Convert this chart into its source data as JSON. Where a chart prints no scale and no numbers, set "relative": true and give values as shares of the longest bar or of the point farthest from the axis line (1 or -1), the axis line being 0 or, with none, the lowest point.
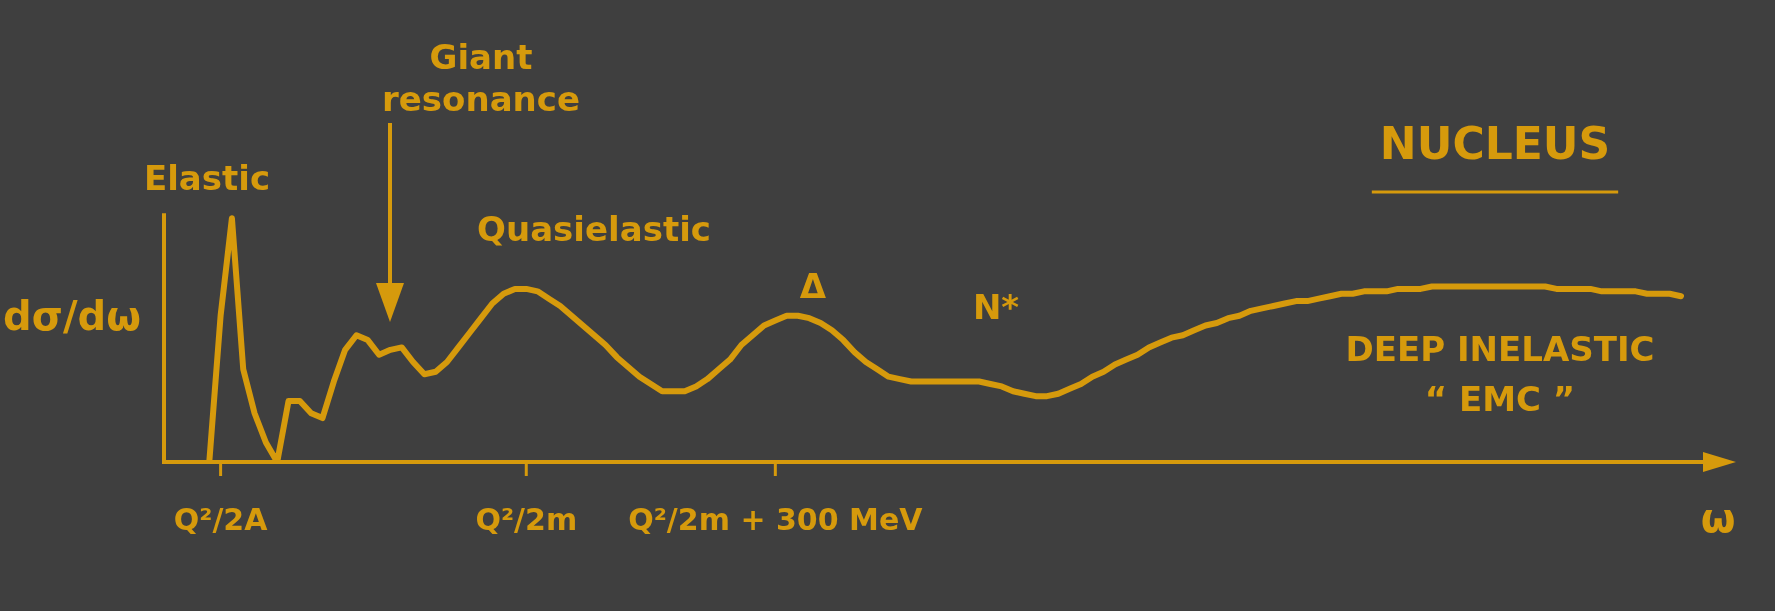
{
  "chart_data": {
    "type": "line",
    "title": "NUCLEUS",
    "xlabel": "ω",
    "ylabel": "dσ/dω",
    "relative": true,
    "grid": false,
    "legend": false,
    "marker": "none",
    "line_style": "solid",
    "annotations": [
      "Elastic",
      "Giant resonance",
      "Quasielastic",
      "Δ",
      "N*",
      "DEEP INELASTIC",
      "“ EMC ”"
    ],
    "categories": [
      null,
      null,
      null,
      null,
      null,
      "Q²/2A",
      null,
      null,
      null,
      null,
      null,
      null,
      null,
      null,
      null,
      null,
      null,
      null,
      null,
      null,
      null,
      null,
      null,
      null,
      null,
      null,
      null,
      null,
      null,
      null,
      null,
      null,
      "Q²/2m",
      null,
      null,
      null,
      null,
      null,
      null,
      null,
      null,
      null,
      null,
      null,
      null,
      null,
      null,
      null,
      null,
      null,
      null,
      null,
      null,
      null,
      "Q²/2m + 300 MeV",
      null,
      null,
      null,
      null,
      null,
      null,
      null,
      null,
      null,
      null,
      null,
      null,
      null,
      null,
      null,
      null,
      null,
      null,
      null,
      null,
      null,
      null,
      null,
      null,
      null,
      null,
      null,
      null,
      null,
      null,
      null,
      null,
      null,
      null,
      null,
      null,
      null,
      null,
      null,
      null,
      null,
      null,
      null,
      null,
      null,
      null,
      null,
      null,
      null,
      null,
      null,
      null,
      null,
      null,
      null,
      null,
      null,
      null,
      null,
      null,
      null,
      null,
      null,
      null,
      null,
      null,
      null,
      null,
      null,
      null,
      null,
      null,
      null,
      null,
      null,
      null,
      null,
      null,
      null,
      null
    ],
    "series": [
      {
        "color": "#d69a0c",
        "values": [
          null,
          null,
          null,
          null,
          0,
          0.6,
          1,
          0.38,
          0.2,
          0.08,
          0,
          0.25,
          0.25,
          0.2,
          0.18,
          0.33,
          0.46,
          0.52,
          0.5,
          0.44,
          0.46,
          0.47,
          0.41,
          0.36,
          0.37,
          0.41,
          0.47,
          0.53,
          0.59,
          0.65,
          0.69,
          0.71,
          0.71,
          0.7,
          0.67,
          0.64,
          0.6,
          0.56,
          0.52,
          0.48,
          0.43,
          0.39,
          0.35,
          0.32,
          0.29,
          0.29,
          0.29,
          0.31,
          0.34,
          0.38,
          0.42,
          0.48,
          0.52,
          0.56,
          0.58,
          0.6,
          0.6,
          0.59,
          0.57,
          0.54,
          0.5,
          0.45,
          0.41,
          0.38,
          0.35,
          0.34,
          0.33,
          0.33,
          0.33,
          0.33,
          0.33,
          0.33,
          0.33,
          0.32,
          0.31,
          0.29,
          0.28,
          0.27,
          0.27,
          0.28,
          0.3,
          0.32,
          0.35,
          0.37,
          0.4,
          0.42,
          0.44,
          0.47,
          0.49,
          0.51,
          0.52,
          0.54,
          0.56,
          0.57,
          0.59,
          0.6,
          0.62,
          0.63,
          0.64,
          0.65,
          0.66,
          0.66,
          0.67,
          0.68,
          0.69,
          0.69,
          0.7,
          0.7,
          0.7,
          0.71,
          0.71,
          0.71,
          0.72,
          0.72,
          0.72,
          0.72,
          0.72,
          0.72,
          0.72,
          0.72,
          0.72,
          0.72,
          0.72,
          0.71,
          0.71,
          0.71,
          0.71,
          0.7,
          0.7,
          0.7,
          0.7,
          0.69,
          0.69,
          0.69,
          0.68
        ]
      }
    ]
  }
}
